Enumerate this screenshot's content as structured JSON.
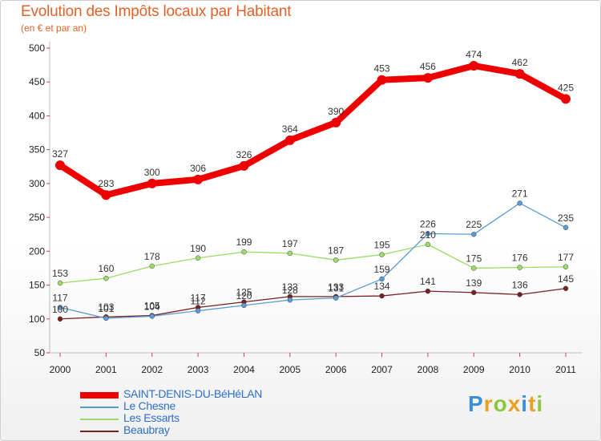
{
  "header": {
    "title": "Evolution des Impôts locaux par Habitant",
    "subtitle": "(en € et par an)"
  },
  "chart_data": {
    "type": "line",
    "x": [
      "2000",
      "2001",
      "2002",
      "2003",
      "2004",
      "2005",
      "2006",
      "2007",
      "2008",
      "2009",
      "2010",
      "2011"
    ],
    "ylim": [
      50,
      500
    ],
    "yticks": [
      50,
      100,
      150,
      200,
      250,
      300,
      350,
      400,
      450,
      500
    ],
    "grid": false,
    "legend_position": "bottom-left",
    "series": [
      {
        "name": "SAINT-DENIS-DU-BéHéLAN",
        "color": "#ee0000",
        "width": 8,
        "marker": 6,
        "values": [
          327,
          283,
          300,
          306,
          326,
          364,
          390,
          453,
          456,
          474,
          462,
          425
        ]
      },
      {
        "name": "Le Chesne",
        "color": "#5b9bd5",
        "width": 1.3,
        "marker": 3,
        "values": [
          117,
          101,
          104,
          112,
          120,
          128,
          131,
          159,
          226,
          225,
          271,
          235
        ]
      },
      {
        "name": "Les Essarts",
        "color": "#99dd66",
        "width": 1.3,
        "marker": 3,
        "values": [
          153,
          160,
          178,
          190,
          199,
          197,
          187,
          195,
          210,
          175,
          176,
          177
        ]
      },
      {
        "name": "Beaubray",
        "color": "#772222",
        "width": 1.3,
        "marker": 3,
        "values": [
          100,
          103,
          105,
          117,
          125,
          133,
          133,
          134,
          141,
          139,
          136,
          145
        ]
      }
    ]
  },
  "legend": {
    "items": [
      "SAINT-DENIS-DU-BéHéLAN",
      "Le Chesne",
      "Les Essarts",
      "Beaubray"
    ]
  },
  "logo": {
    "letters": [
      "P",
      "r",
      "o",
      "x",
      "i",
      "t",
      "i"
    ],
    "colors": [
      "#3a8fd6",
      "#e8a020",
      "#8cc63f",
      "#e8a020",
      "#3a8fd6",
      "#e8a020",
      "#8cc63f"
    ]
  }
}
